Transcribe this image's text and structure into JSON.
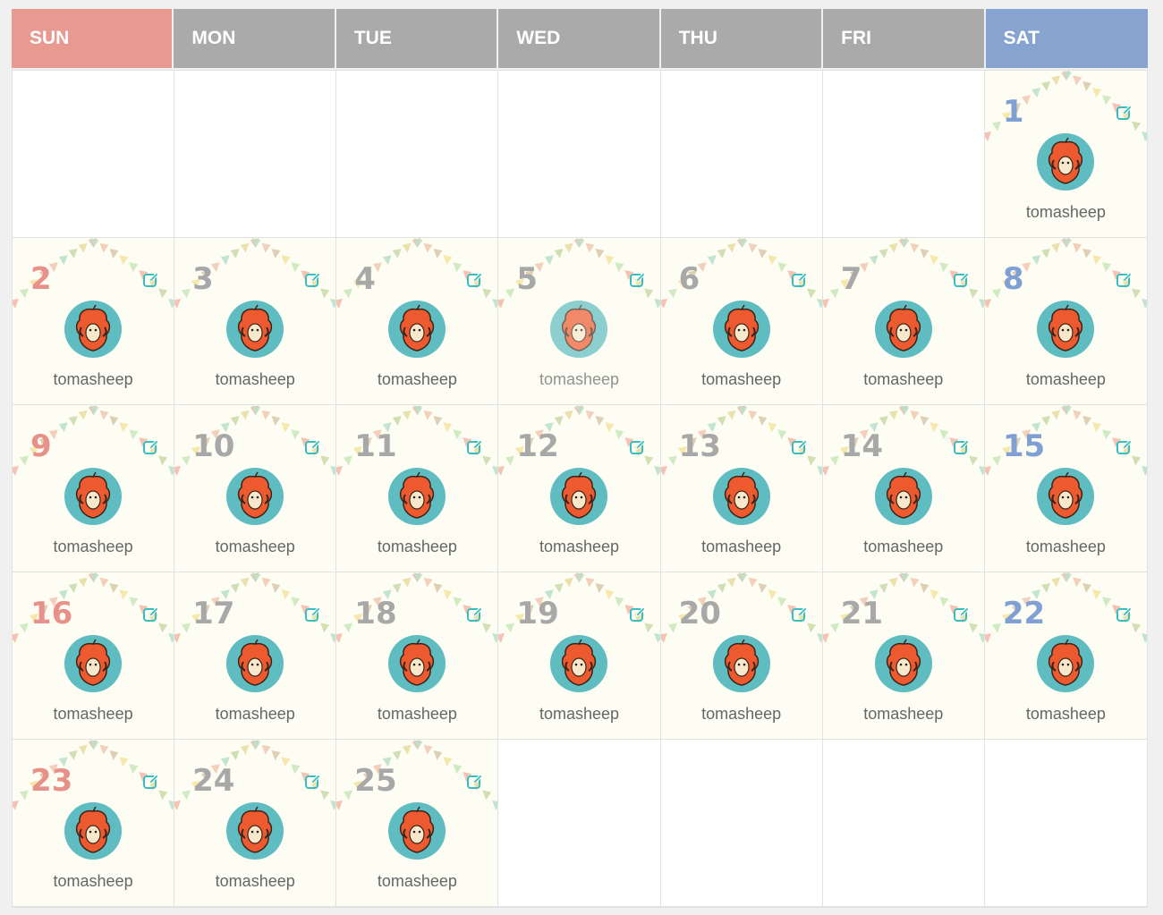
{
  "weekdays": [
    {
      "label": "SUN",
      "color": "#e89a91"
    },
    {
      "label": "MON",
      "color": "#aaaaaa"
    },
    {
      "label": "TUE",
      "color": "#aaaaaa"
    },
    {
      "label": "WED",
      "color": "#aaaaaa"
    },
    {
      "label": "THU",
      "color": "#aaaaaa"
    },
    {
      "label": "FRI",
      "color": "#aaaaaa"
    },
    {
      "label": "SAT",
      "color": "#87a3cf"
    }
  ],
  "day_colors": {
    "sun": "#e8908a",
    "sat": "#809fd2",
    "weekday": "#a8a8a8"
  },
  "accent": "#3bbcc0",
  "first_weekday_offset": 6,
  "days": [
    {
      "day": "1",
      "user": "tomasheep"
    },
    {
      "day": "2",
      "user": "tomasheep"
    },
    {
      "day": "3",
      "user": "tomasheep"
    },
    {
      "day": "4",
      "user": "tomasheep"
    },
    {
      "day": "5",
      "user": "tomasheep",
      "hovered": true
    },
    {
      "day": "6",
      "user": "tomasheep"
    },
    {
      "day": "7",
      "user": "tomasheep"
    },
    {
      "day": "8",
      "user": "tomasheep"
    },
    {
      "day": "9",
      "user": "tomasheep"
    },
    {
      "day": "10",
      "user": "tomasheep"
    },
    {
      "day": "11",
      "user": "tomasheep"
    },
    {
      "day": "12",
      "user": "tomasheep"
    },
    {
      "day": "13",
      "user": "tomasheep"
    },
    {
      "day": "14",
      "user": "tomasheep"
    },
    {
      "day": "15",
      "user": "tomasheep"
    },
    {
      "day": "16",
      "user": "tomasheep"
    },
    {
      "day": "17",
      "user": "tomasheep"
    },
    {
      "day": "18",
      "user": "tomasheep"
    },
    {
      "day": "19",
      "user": "tomasheep"
    },
    {
      "day": "20",
      "user": "tomasheep"
    },
    {
      "day": "21",
      "user": "tomasheep"
    },
    {
      "day": "22",
      "user": "tomasheep"
    },
    {
      "day": "23",
      "user": "tomasheep"
    },
    {
      "day": "24",
      "user": "tomasheep"
    },
    {
      "day": "25",
      "user": "tomasheep"
    }
  ],
  "icons": {
    "edit": "edit-icon",
    "avatar": "sheep-avatar-icon"
  }
}
